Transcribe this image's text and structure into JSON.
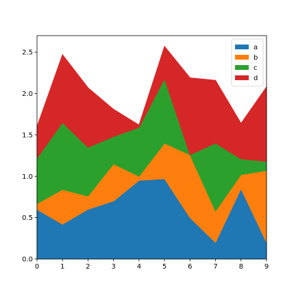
{
  "chart_data": {
    "type": "area",
    "stacked": true,
    "x": [
      0,
      1,
      2,
      3,
      4,
      5,
      6,
      7,
      8,
      9
    ],
    "xlim": [
      0,
      9
    ],
    "ylim": [
      0,
      2.7
    ],
    "xticks": [
      "0",
      "1",
      "2",
      "3",
      "4",
      "5",
      "6",
      "7",
      "8",
      "9"
    ],
    "yticks": [
      "0.0",
      "0.5",
      "1.0",
      "1.5",
      "2.0",
      "2.5"
    ],
    "ytick_values": [
      0,
      0.5,
      1.0,
      1.5,
      2.0,
      2.5
    ],
    "grid": false,
    "legend_position": "top-right",
    "series": [
      {
        "name": "a",
        "color": "#1f77b4",
        "values": [
          0.6,
          0.42,
          0.6,
          0.7,
          0.95,
          0.97,
          0.5,
          0.2,
          0.85,
          0.2
        ]
      },
      {
        "name": "b",
        "color": "#ff7f0e",
        "values": [
          0.07,
          0.42,
          0.16,
          0.45,
          0.05,
          0.43,
          0.76,
          0.38,
          0.17,
          0.87
        ]
      },
      {
        "name": "c",
        "color": "#2ca02c",
        "values": [
          0.55,
          0.81,
          0.59,
          0.33,
          0.59,
          0.78,
          0.0,
          0.82,
          0.19,
          0.11
        ]
      },
      {
        "name": "d",
        "color": "#d62728",
        "values": [
          0.38,
          0.82,
          0.72,
          0.33,
          0.03,
          0.39,
          0.93,
          0.76,
          0.43,
          0.9
        ]
      }
    ]
  }
}
